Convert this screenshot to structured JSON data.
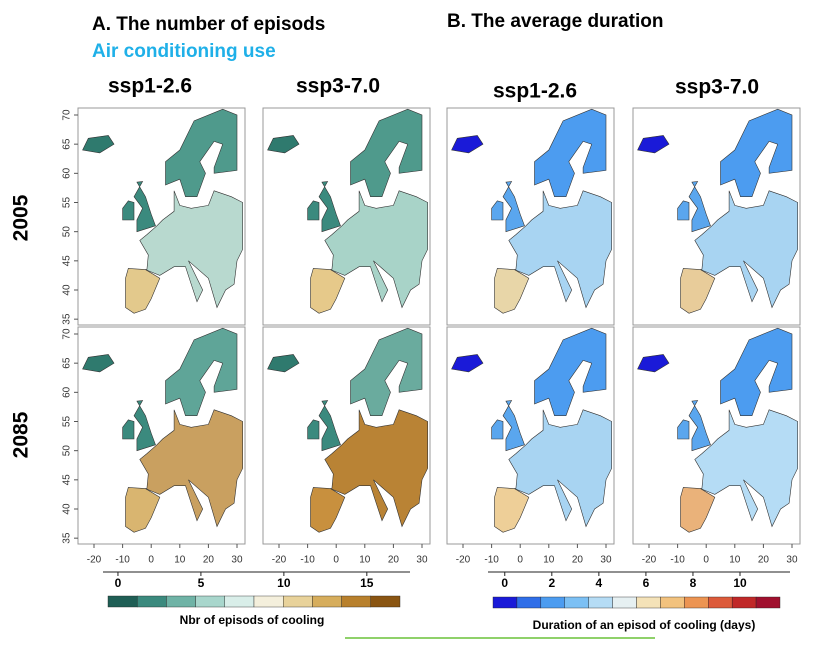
{
  "panels": [
    {
      "title": "A. The number of episods",
      "subtitle": "Air conditioning use",
      "columns": [
        "ssp1-2.6",
        "ssp3-7.0"
      ],
      "colorbar": {
        "ticks": [
          0,
          5,
          10,
          15
        ],
        "lim": [
          -0.6,
          17
        ],
        "label": "Nbr of episods of cooling",
        "colors": [
          "#1f5e55",
          "#3b8a7e",
          "#6fb3a6",
          "#a8d6cc",
          "#d9eee9",
          "#f4efdc",
          "#e8d29a",
          "#d6ad5c",
          "#b8802c",
          "#8a5512"
        ]
      }
    },
    {
      "title": "B. The average duration",
      "columns": [
        "ssp1-2.6",
        "ssp3-7.0"
      ],
      "colorbar": {
        "ticks": [
          0,
          2,
          4,
          6,
          8,
          10
        ],
        "lim": [
          -0.5,
          11.7
        ],
        "label": "Duration of an episod of cooling (days)",
        "colors": [
          "#1a1ad8",
          "#2f6ee8",
          "#4c9cf0",
          "#7cc0f4",
          "#b5dcf5",
          "#e6f0f2",
          "#f4e2b8",
          "#f2c27e",
          "#ec9452",
          "#dc5a3a",
          "#c02828",
          "#a0102e"
        ]
      }
    }
  ],
  "rows": [
    "2005",
    "2085"
  ],
  "lat_ticks": [
    35,
    40,
    45,
    50,
    55,
    60,
    65,
    70
  ],
  "lon_ticks": [
    -20,
    -10,
    0,
    10,
    20,
    30
  ],
  "lat_lim": [
    34,
    71.2
  ],
  "lon_lim": [
    -25.6,
    32.8
  ]
}
